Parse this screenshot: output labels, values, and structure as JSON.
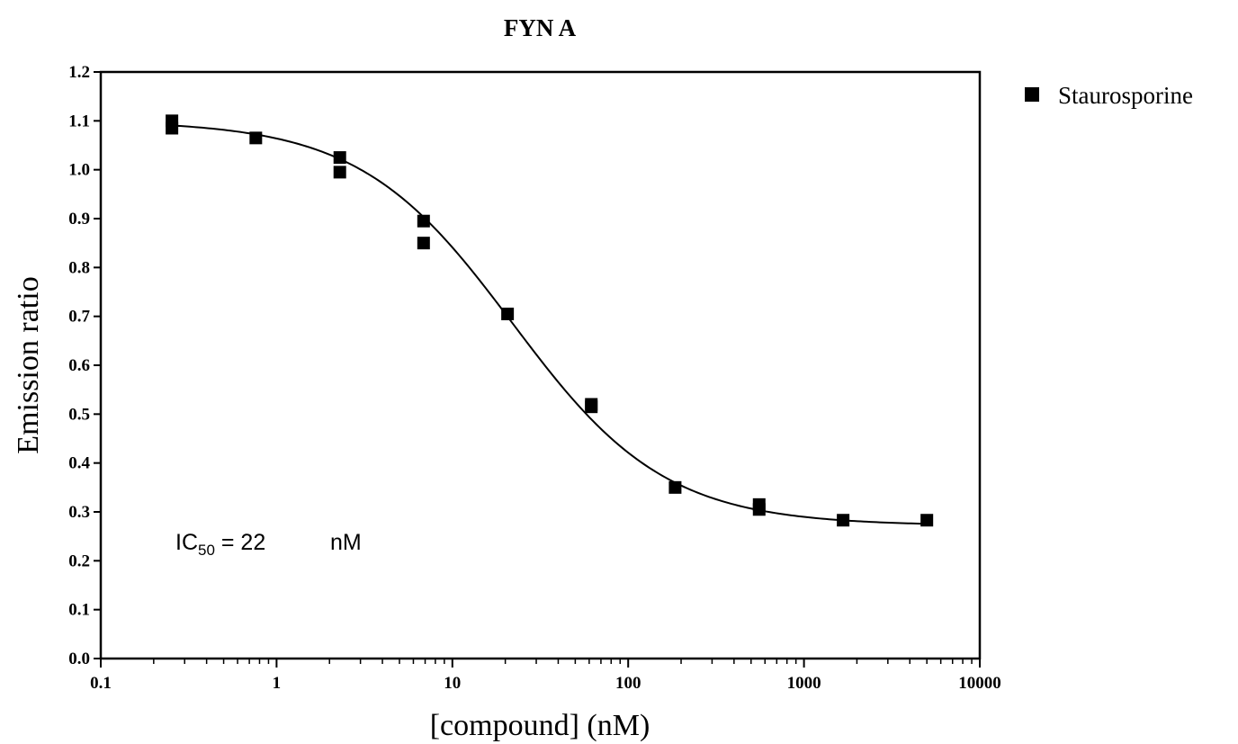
{
  "chart_data": {
    "type": "scatter",
    "title": "FYN A",
    "xlabel": "[compound] (nM)",
    "ylabel": "Emission ratio",
    "xscale": "log",
    "xlim": [
      0.1,
      10000
    ],
    "ylim": [
      0.0,
      1.2
    ],
    "x_ticks": [
      "0.1",
      "1",
      "10",
      "100",
      "1000",
      "10000"
    ],
    "x_tick_values": [
      0.1,
      1,
      10,
      100,
      1000,
      10000
    ],
    "y_ticks": [
      "0.0",
      "0.1",
      "0.2",
      "0.3",
      "0.4",
      "0.5",
      "0.6",
      "0.7",
      "0.8",
      "0.9",
      "1.0",
      "1.1",
      "1.2"
    ],
    "y_tick_values": [
      0.0,
      0.1,
      0.2,
      0.3,
      0.4,
      0.5,
      0.6,
      0.7,
      0.8,
      0.9,
      1.0,
      1.1,
      1.2
    ],
    "grid": false,
    "legend_position": "right",
    "marker": "square",
    "marker_color": "#000000",
    "series": [
      {
        "name": "Staurosporine",
        "points": [
          {
            "x": 0.254,
            "y": 1.1
          },
          {
            "x": 0.254,
            "y": 1.085
          },
          {
            "x": 0.762,
            "y": 1.065
          },
          {
            "x": 2.29,
            "y": 1.025
          },
          {
            "x": 2.29,
            "y": 0.995
          },
          {
            "x": 6.86,
            "y": 0.895
          },
          {
            "x": 6.86,
            "y": 0.85
          },
          {
            "x": 20.6,
            "y": 0.705
          },
          {
            "x": 61.7,
            "y": 0.52
          },
          {
            "x": 61.7,
            "y": 0.515
          },
          {
            "x": 185,
            "y": 0.35
          },
          {
            "x": 556,
            "y": 0.315
          },
          {
            "x": 556,
            "y": 0.305
          },
          {
            "x": 1670,
            "y": 0.283
          },
          {
            "x": 5000,
            "y": 0.283
          }
        ],
        "fit": {
          "model": "four-parameter logistic",
          "top": 1.1,
          "bottom": 0.272,
          "log_ic50": 1.342,
          "hill_slope": -1.0
        }
      }
    ],
    "annotation": {
      "prefix": "IC",
      "subscript": "50",
      "value_text": " = 22",
      "unit": "nM"
    }
  }
}
